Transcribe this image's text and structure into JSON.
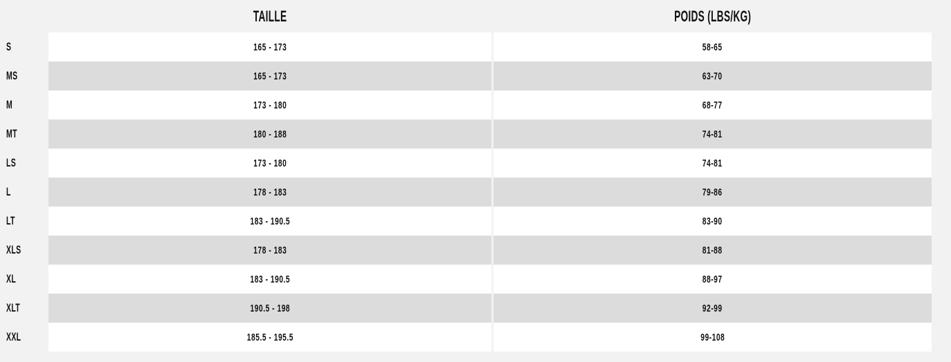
{
  "page": {
    "background_color": "#f2f2f2",
    "row_white_color": "#ffffff",
    "row_stripe_color": "#dcdcdc",
    "text_color": "#111111"
  },
  "chart_data": {
    "type": "table",
    "title": "",
    "columns": [
      "TAILLE",
      "POIDS (LBS/KG)"
    ],
    "row_label_column": "size",
    "rows": [
      {
        "size": "S",
        "taille": "165 - 173",
        "poids": "58-65"
      },
      {
        "size": "MS",
        "taille": "165 - 173",
        "poids": "63-70"
      },
      {
        "size": "M",
        "taille": "173 - 180",
        "poids": "68-77"
      },
      {
        "size": "MT",
        "taille": "180 - 188",
        "poids": "74-81"
      },
      {
        "size": "LS",
        "taille": "173 - 180",
        "poids": "74-81"
      },
      {
        "size": "L",
        "taille": "178 - 183",
        "poids": "79-86"
      },
      {
        "size": "LT",
        "taille": "183 - 190.5",
        "poids": "83-90"
      },
      {
        "size": "XLS",
        "taille": "178 - 183",
        "poids": "81-88"
      },
      {
        "size": "XL",
        "taille": "183 - 190.5",
        "poids": "88-97"
      },
      {
        "size": "XLT",
        "taille": "190.5 - 198",
        "poids": "92-99"
      },
      {
        "size": "XXL",
        "taille": "185.5 - 195.5",
        "poids": "99-108"
      }
    ],
    "layout": {
      "stripe_pattern": "odd rows white, even rows grey",
      "label_column_on_page_background": true
    }
  }
}
